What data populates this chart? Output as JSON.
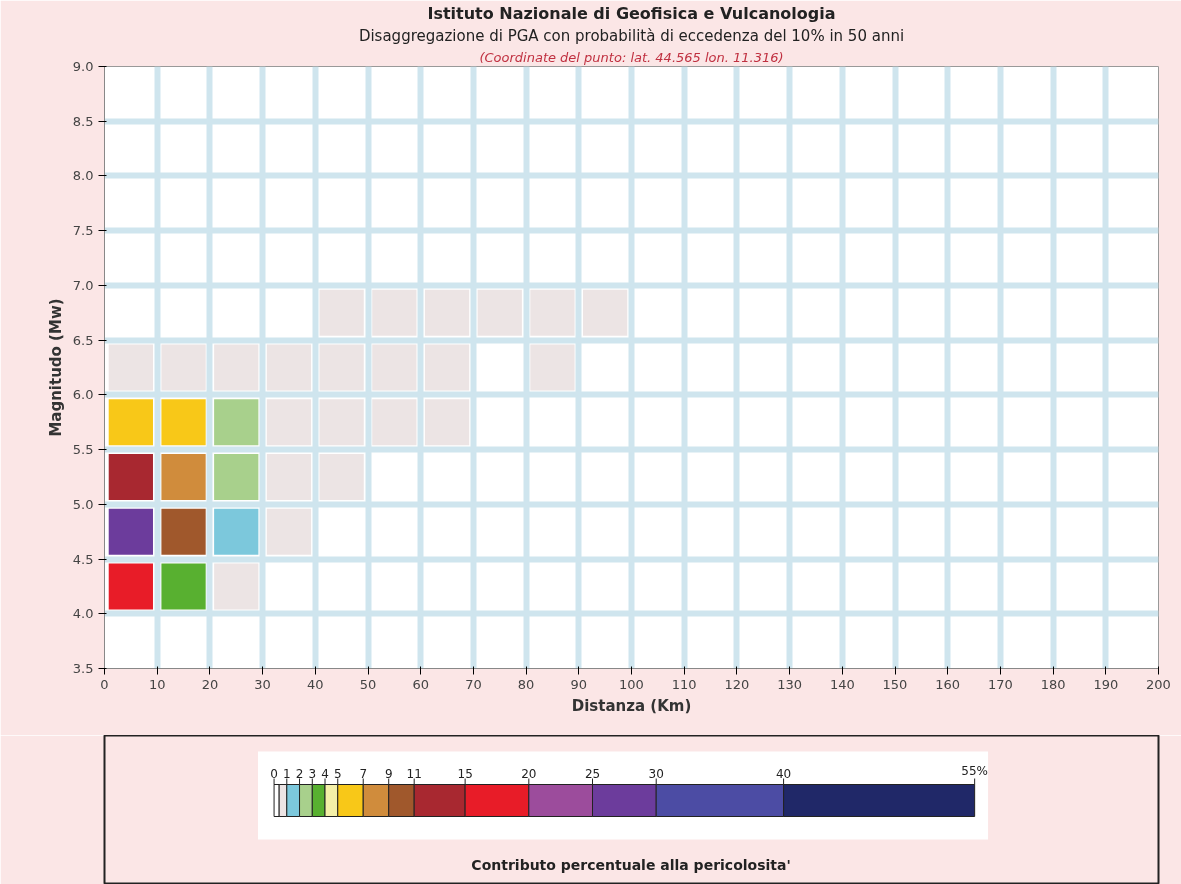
{
  "chart_data": {
    "type": "heatmap",
    "title": "Istituto Nazionale di Geofisica e Vulcanologia",
    "subtitle": "Disaggregazione di PGA con probabilità di eccedenza del 10% in 50 anni",
    "annotations": [
      "(Coordinate del punto: lat. 44.565 lon. 11.316)"
    ],
    "xlabel": "Distanza (Km)",
    "ylabel": "Magnitudo (Mw)",
    "clabel": "Contributo percentuale alla pericolosita'",
    "xlim": [
      0,
      200
    ],
    "xticks": [
      0,
      10,
      20,
      30,
      40,
      50,
      60,
      70,
      80,
      90,
      100,
      110,
      120,
      130,
      140,
      150,
      160,
      170,
      180,
      190,
      200
    ],
    "ylim": [
      3.5,
      9.0
    ],
    "yticks": [
      3.5,
      {
        "value": 4,
        "label": "4.0"
      },
      4.5,
      {
        "value": 5,
        "label": "5.0"
      },
      5.5,
      {
        "value": 6,
        "label": "6.0"
      },
      6.5,
      {
        "value": 7,
        "label": "7.0"
      },
      7.5,
      {
        "value": 8,
        "label": "8.0"
      },
      8.5,
      {
        "value": 9,
        "label": "9.0"
      }
    ],
    "grid": true,
    "clim": [
      0,
      55
    ],
    "cticks": [
      0,
      1,
      2,
      3,
      4,
      5,
      7,
      9,
      11,
      15,
      20,
      25,
      30,
      40,
      {
        "value": 55,
        "label": "55%"
      }
    ],
    "colors": [
      "#ffffff",
      "#ece4e4",
      "#7cc8dc",
      "#a8d08c",
      "#58b030",
      "#f4f0a8",
      "#f8c818",
      "#d08c3c",
      "#a0582c",
      "#a82830",
      "#e81c28",
      "#9c4c9c",
      "#6c3c9c",
      "#4c4ca4",
      "#202868"
    ],
    "cells": [
      [
        0,
        0,
        0,
        0,
        0,
        0,
        0,
        0,
        0,
        0,
        0,
        0,
        0,
        0,
        0,
        0,
        0,
        0,
        0,
        0
      ],
      [
        0,
        0,
        0,
        0,
        0,
        0,
        0,
        0,
        0,
        0,
        0,
        0,
        0,
        0,
        0,
        0,
        0,
        0,
        0,
        0
      ],
      [
        0,
        0,
        0,
        0,
        0,
        0,
        0,
        0,
        0,
        0,
        0,
        0,
        0,
        0,
        0,
        0,
        0,
        0,
        0,
        0
      ],
      [
        0,
        0,
        0,
        0,
        0,
        0,
        0,
        0,
        0,
        0,
        0,
        0,
        0,
        0,
        0,
        0,
        0,
        0,
        0,
        0
      ],
      [
        0,
        0,
        0,
        0,
        0.5,
        0.5,
        0.5,
        0.5,
        0.5,
        0.5,
        0,
        0,
        0,
        0,
        0,
        0,
        0,
        0,
        0,
        0
      ],
      [
        0.5,
        0.5,
        0.5,
        0.5,
        0.5,
        0.5,
        0.5,
        0,
        0.5,
        0,
        0,
        0,
        0,
        0,
        0,
        0,
        0,
        0,
        0,
        0
      ],
      [
        6,
        6,
        2.5,
        0.5,
        0.5,
        0.5,
        0.5,
        0,
        0,
        0,
        0,
        0,
        0,
        0,
        0,
        0,
        0,
        0,
        0,
        0
      ],
      [
        13,
        8,
        2.5,
        0.5,
        0.5,
        0,
        0,
        0,
        0,
        0,
        0,
        0,
        0,
        0,
        0,
        0,
        0,
        0,
        0,
        0
      ],
      [
        27.5,
        10,
        1.5,
        0.5,
        0,
        0,
        0,
        0,
        0,
        0,
        0,
        0,
        0,
        0,
        0,
        0,
        0,
        0,
        0,
        0
      ],
      [
        17.5,
        3.5,
        0.5,
        0,
        0,
        0,
        0,
        0,
        0,
        0,
        0,
        0,
        0,
        0,
        0,
        0,
        0,
        0,
        0,
        0
      ],
      [
        0,
        0,
        0,
        0,
        0,
        0,
        0,
        0,
        0,
        0,
        0,
        0,
        0,
        0,
        0,
        0,
        0,
        0,
        0,
        0
      ]
    ]
  }
}
